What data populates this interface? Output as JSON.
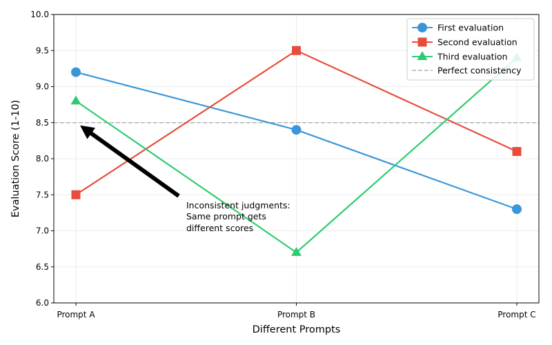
{
  "chart_data": {
    "type": "line",
    "categories": [
      "Prompt A",
      "Prompt B",
      "Prompt C"
    ],
    "series": [
      {
        "name": "First evaluation",
        "values": [
          9.2,
          8.4,
          7.3
        ],
        "color": "#3a96d8",
        "marker": "circle"
      },
      {
        "name": "Second evaluation",
        "values": [
          7.5,
          9.5,
          8.1
        ],
        "color": "#e74c3c",
        "marker": "square"
      },
      {
        "name": "Third evaluation",
        "values": [
          8.8,
          6.7,
          9.4
        ],
        "color": "#2ecc71",
        "marker": "triangle"
      }
    ],
    "reference_line": {
      "name": "Perfect consistency",
      "value": 8.5,
      "color": "#b0b0b0",
      "style": "dashed"
    },
    "xlabel": "Different Prompts",
    "ylabel": "Evaluation Score (1-10)",
    "ylim": [
      6.0,
      10.0
    ],
    "yticks": [
      "6.0",
      "6.5",
      "7.0",
      "7.5",
      "8.0",
      "8.5",
      "9.0",
      "9.5",
      "10.0"
    ],
    "grid": true,
    "legend_position": "top-right",
    "annotation": {
      "lines": [
        "Inconsistent judgments:",
        "Same prompt gets",
        "different scores"
      ],
      "points_to": {
        "category": "Prompt A",
        "value": 8.5
      }
    }
  }
}
